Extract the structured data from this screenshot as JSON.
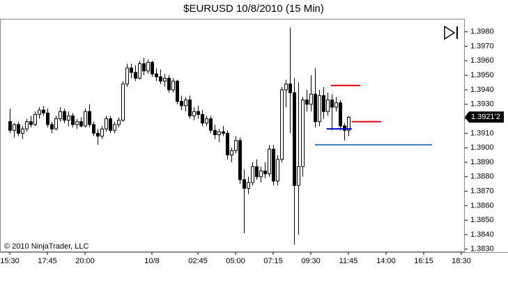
{
  "chart_data": {
    "type": "candlestick",
    "title": "$EURUSD  10/8/2010 (15 Min)",
    "copyright": "© 2010 NinjaTrader, LLC",
    "xlim": [
      -2.33,
      108.83
    ],
    "xticks": [
      {
        "value": 0,
        "label": "15:30"
      },
      {
        "value": 9,
        "label": "17:45"
      },
      {
        "value": 18,
        "label": "20:00"
      },
      {
        "value": 34,
        "label": "10/8"
      },
      {
        "value": 45,
        "label": "02:45"
      },
      {
        "value": 54,
        "label": "05:00"
      },
      {
        "value": 63,
        "label": "07:15"
      },
      {
        "value": 72,
        "label": "09:30"
      },
      {
        "value": 81,
        "label": "11:45"
      },
      {
        "value": 90,
        "label": "14:00"
      },
      {
        "value": 99,
        "label": "16:15"
      },
      {
        "value": 108,
        "label": "18:30"
      }
    ],
    "ylim": [
      1.3828,
      1.3989
    ],
    "yticks": [
      {
        "value": 1.383,
        "label": "1.3830"
      },
      {
        "value": 1.384,
        "label": "1.3840"
      },
      {
        "value": 1.385,
        "label": "1.3850"
      },
      {
        "value": 1.386,
        "label": "1.3860"
      },
      {
        "value": 1.387,
        "label": "1.3870"
      },
      {
        "value": 1.388,
        "label": "1.3880"
      },
      {
        "value": 1.389,
        "label": "1.3890"
      },
      {
        "value": 1.39,
        "label": "1.3900"
      },
      {
        "value": 1.391,
        "label": "1.3910"
      },
      {
        "value": 1.392,
        "label": "1.3920"
      },
      {
        "value": 1.393,
        "label": "1.3930"
      },
      {
        "value": 1.394,
        "label": "1.3940"
      },
      {
        "value": 1.395,
        "label": "1.3950"
      },
      {
        "value": 1.396,
        "label": "1.3960"
      },
      {
        "value": 1.397,
        "label": "1.3970"
      },
      {
        "value": 1.398,
        "label": "1.3980"
      }
    ],
    "up_color": "#ffffff",
    "down_color": "#000000",
    "candles": [
      [
        1.3918,
        1.3927,
        1.391,
        1.3912
      ],
      [
        1.3912,
        1.3917,
        1.3907,
        1.3916
      ],
      [
        1.3916,
        1.3918,
        1.3908,
        1.391
      ],
      [
        1.391,
        1.3915,
        1.3906,
        1.3913
      ],
      [
        1.3913,
        1.392,
        1.3911,
        1.3918
      ],
      [
        1.3918,
        1.3922,
        1.3914,
        1.3916
      ],
      [
        1.3916,
        1.3925,
        1.3915,
        1.3923
      ],
      [
        1.3923,
        1.3928,
        1.392,
        1.3926
      ],
      [
        1.3926,
        1.3929,
        1.3922,
        1.3924
      ],
      [
        1.3924,
        1.3927,
        1.3914,
        1.3916
      ],
      [
        1.3916,
        1.3918,
        1.391,
        1.3913
      ],
      [
        1.3913,
        1.3922,
        1.3912,
        1.392
      ],
      [
        1.392,
        1.3928,
        1.3918,
        1.3925
      ],
      [
        1.3925,
        1.3927,
        1.3917,
        1.3919
      ],
      [
        1.3919,
        1.3925,
        1.3915,
        1.3922
      ],
      [
        1.3922,
        1.3924,
        1.3914,
        1.3916
      ],
      [
        1.3916,
        1.392,
        1.3913,
        1.3918
      ],
      [
        1.3918,
        1.3921,
        1.3914,
        1.3915
      ],
      [
        1.3915,
        1.3927,
        1.3914,
        1.3925
      ],
      [
        1.3925,
        1.393,
        1.3914,
        1.3916
      ],
      [
        1.3916,
        1.3918,
        1.3908,
        1.391
      ],
      [
        1.391,
        1.3913,
        1.3902,
        1.3908
      ],
      [
        1.3908,
        1.3915,
        1.3906,
        1.3913
      ],
      [
        1.3913,
        1.3922,
        1.3911,
        1.392
      ],
      [
        1.392,
        1.3922,
        1.391,
        1.3912
      ],
      [
        1.3912,
        1.3918,
        1.391,
        1.3916
      ],
      [
        1.3916,
        1.3921,
        1.3914,
        1.3919
      ],
      [
        1.3919,
        1.3946,
        1.3918,
        1.3944
      ],
      [
        1.3944,
        1.3958,
        1.3942,
        1.3955
      ],
      [
        1.3955,
        1.3958,
        1.3948,
        1.3952
      ],
      [
        1.3952,
        1.3957,
        1.3946,
        1.3948
      ],
      [
        1.3948,
        1.396,
        1.3947,
        1.3958
      ],
      [
        1.3958,
        1.3962,
        1.395,
        1.3953
      ],
      [
        1.3953,
        1.3961,
        1.3951,
        1.3959
      ],
      [
        1.3959,
        1.396,
        1.3949,
        1.3951
      ],
      [
        1.3951,
        1.3955,
        1.3946,
        1.3949
      ],
      [
        1.3949,
        1.3954,
        1.3944,
        1.3946
      ],
      [
        1.3946,
        1.3951,
        1.3942,
        1.3948
      ],
      [
        1.3948,
        1.395,
        1.3938,
        1.394
      ],
      [
        1.394,
        1.3948,
        1.3938,
        1.3946
      ],
      [
        1.3946,
        1.3947,
        1.393,
        1.3932
      ],
      [
        1.3932,
        1.3936,
        1.3926,
        1.3929
      ],
      [
        1.3929,
        1.3935,
        1.3925,
        1.3933
      ],
      [
        1.3933,
        1.3936,
        1.392,
        1.3922
      ],
      [
        1.3922,
        1.3928,
        1.3919,
        1.3925
      ],
      [
        1.3925,
        1.3929,
        1.392,
        1.3923
      ],
      [
        1.3923,
        1.3926,
        1.3915,
        1.3917
      ],
      [
        1.3917,
        1.3922,
        1.3915,
        1.392
      ],
      [
        1.392,
        1.3922,
        1.391,
        1.3912
      ],
      [
        1.3912,
        1.3916,
        1.3906,
        1.3909
      ],
      [
        1.3909,
        1.3913,
        1.3904,
        1.3911
      ],
      [
        1.3911,
        1.3915,
        1.3908,
        1.391
      ],
      [
        1.391,
        1.3912,
        1.3892,
        1.3895
      ],
      [
        1.3895,
        1.39,
        1.389,
        1.3898
      ],
      [
        1.3898,
        1.3908,
        1.3896,
        1.3905
      ],
      [
        1.3905,
        1.3907,
        1.3875,
        1.3878
      ],
      [
        1.3878,
        1.3885,
        1.3841,
        1.3872
      ],
      [
        1.3872,
        1.388,
        1.3868,
        1.3876
      ],
      [
        1.3876,
        1.389,
        1.3874,
        1.3887
      ],
      [
        1.3887,
        1.3892,
        1.3878,
        1.388
      ],
      [
        1.388,
        1.3887,
        1.3876,
        1.3884
      ],
      [
        1.3884,
        1.389,
        1.3879,
        1.3882
      ],
      [
        1.3882,
        1.3902,
        1.388,
        1.3899
      ],
      [
        1.3899,
        1.3902,
        1.3874,
        1.3877
      ],
      [
        1.3877,
        1.3895,
        1.3874,
        1.3892
      ],
      [
        1.3892,
        1.3942,
        1.389,
        1.394
      ],
      [
        1.394,
        1.3947,
        1.3928,
        1.3944
      ],
      [
        1.3944,
        1.3983,
        1.391,
        1.3938
      ],
      [
        1.3938,
        1.3948,
        1.3833,
        1.3874
      ],
      [
        1.3874,
        1.3945,
        1.384,
        1.3887
      ],
      [
        1.3887,
        1.3935,
        1.388,
        1.3933
      ],
      [
        1.3933,
        1.394,
        1.3925,
        1.393
      ],
      [
        1.393,
        1.395,
        1.3925,
        1.3937
      ],
      [
        1.3937,
        1.3955,
        1.3914,
        1.3918
      ],
      [
        1.3918,
        1.394,
        1.3915,
        1.3936
      ],
      [
        1.3936,
        1.3942,
        1.392,
        1.3925
      ],
      [
        1.3925,
        1.3938,
        1.3922,
        1.3933
      ],
      [
        1.3933,
        1.3937,
        1.3912,
        1.3928
      ],
      [
        1.3928,
        1.3935,
        1.3925,
        1.3931
      ],
      [
        1.3931,
        1.3933,
        1.3912,
        1.3915
      ],
      [
        1.3915,
        1.3917,
        1.3905,
        1.3912
      ],
      [
        1.3912,
        1.3922,
        1.3908,
        1.3921
      ]
    ],
    "levels": [
      {
        "value": 1.3943,
        "color": "#e00000",
        "from": 76.8,
        "to": 83.8
      },
      {
        "value": 1.3913,
        "color": "#0000d0",
        "from": 75.8,
        "to": 81.8
      },
      {
        "value": 1.3902,
        "color": "#4682b4",
        "from": 73,
        "to": 101
      },
      {
        "value": 1.3918,
        "color": "#e00000",
        "from": 81.8,
        "to": 88.8
      }
    ],
    "last_price": {
      "value": 1.39212,
      "label": "1.3921'2"
    }
  }
}
